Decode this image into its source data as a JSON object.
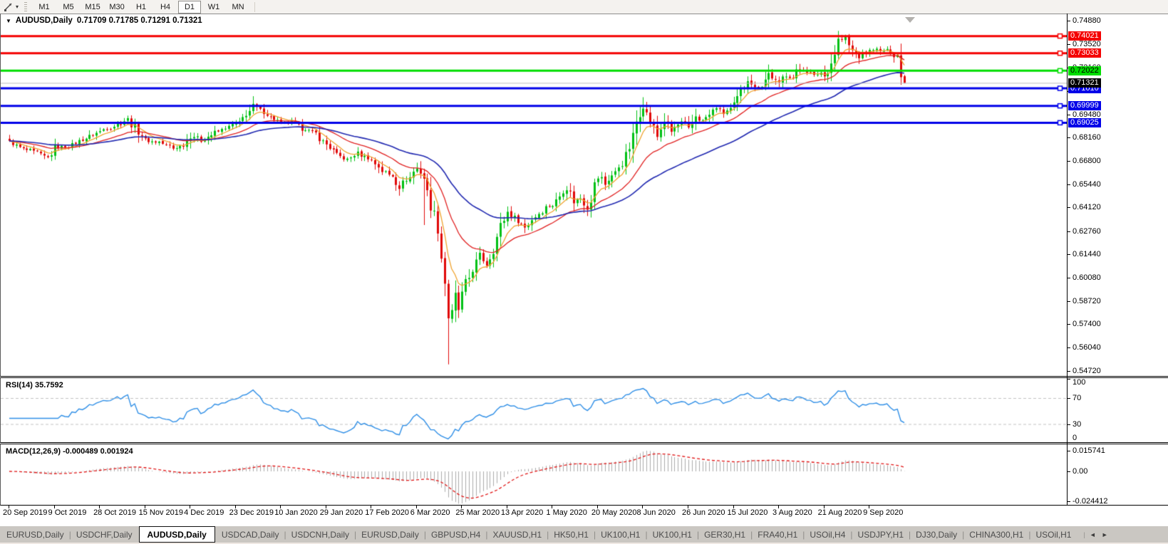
{
  "toolbar": {
    "line_studies_icon": "line-studies",
    "dropdown_caret": "▾",
    "timeframes": [
      "M1",
      "M5",
      "M15",
      "M30",
      "H1",
      "H4",
      "D1",
      "W1",
      "MN"
    ],
    "active_timeframe": "D1"
  },
  "title": {
    "marker": "▼",
    "symbol": "AUDUSD,Daily",
    "ohlc": "0.71709 0.71785 0.71291 0.71321"
  },
  "chart_data": {
    "type": "candlestick",
    "symbol": "AUDUSD",
    "timeframe": "Daily",
    "ohlc_current": {
      "open": 0.71709,
      "high": 0.71785,
      "low": 0.71291,
      "close": 0.71321
    },
    "y_axis_ticks": [
      "0.74880",
      "0.73520",
      "0.72160",
      "0.70840",
      "0.69480",
      "0.68160",
      "0.66800",
      "0.65440",
      "0.64120",
      "0.62760",
      "0.61440",
      "0.60080",
      "0.58720",
      "0.57400",
      "0.56040",
      "0.54720"
    ],
    "x_axis_dates": [
      "20 Sep 2019",
      "9 Oct 2019",
      "28 Oct 2019",
      "15 Nov 2019",
      "4 Dec 2019",
      "23 Dec 2019",
      "10 Jan 2020",
      "29 Jan 2020",
      "17 Feb 2020",
      "6 Mar 2020",
      "25 Mar 2020",
      "13 Apr 2020",
      "1 May 2020",
      "20 May 2020",
      "8 Jun 2020",
      "26 Jun 2020",
      "15 Jul 2020",
      "3 Aug 2020",
      "21 Aug 2020",
      "9 Sep 2020"
    ],
    "price_levels": [
      {
        "label": "0.74021",
        "price": 0.74021,
        "line_color": "#f40000",
        "label_bg": "#f40000",
        "label_fg": "#ffffff"
      },
      {
        "label": "0.73033",
        "price": 0.73033,
        "line_color": "#f40000",
        "label_bg": "#f40000",
        "label_fg": "#ffffff"
      },
      {
        "label": "0.72022",
        "price": 0.72022,
        "line_color": "#00dd00",
        "label_bg": "#00dd00",
        "label_fg": "#000000"
      },
      {
        "label": "0.71010",
        "price": 0.7101,
        "line_color": "#0000e8",
        "label_bg": "#0000e8",
        "label_fg": "#ffffff"
      },
      {
        "label": "0.69999",
        "price": 0.69999,
        "line_color": "#0000e8",
        "label_bg": "#0000e8",
        "label_fg": "#ffffff"
      },
      {
        "label": "0.69025",
        "price": 0.69025,
        "line_color": "#0000e8",
        "label_bg": "#0000e8",
        "label_fg": "#ffffff"
      }
    ],
    "current_price": {
      "label": "0.71321",
      "price": 0.71321,
      "line_color": "#bdbdbd",
      "label_bg": "#000000",
      "label_fg": "#ffffff"
    },
    "candles": {
      "count": 258,
      "bull_color": "#00c014",
      "bear_color": "#e00808",
      "close_waypoints": [
        [
          0,
          0.679
        ],
        [
          4,
          0.6752
        ],
        [
          8,
          0.6729
        ],
        [
          11,
          0.6702
        ],
        [
          13,
          0.6755
        ],
        [
          17,
          0.6768
        ],
        [
          21,
          0.6806
        ],
        [
          26,
          0.6855
        ],
        [
          30,
          0.688
        ],
        [
          34,
          0.6924
        ],
        [
          36,
          0.6876
        ],
        [
          39,
          0.68
        ],
        [
          43,
          0.6792
        ],
        [
          47,
          0.6756
        ],
        [
          50,
          0.6772
        ],
        [
          52,
          0.6836
        ],
        [
          55,
          0.6796
        ],
        [
          59,
          0.6846
        ],
        [
          63,
          0.688
        ],
        [
          66,
          0.6906
        ],
        [
          70,
          0.7
        ],
        [
          73,
          0.696
        ],
        [
          76,
          0.6922
        ],
        [
          78,
          0.6902
        ],
        [
          81,
          0.6906
        ],
        [
          84,
          0.6872
        ],
        [
          88,
          0.684
        ],
        [
          91,
          0.6772
        ],
        [
          94,
          0.6716
        ],
        [
          97,
          0.6692
        ],
        [
          100,
          0.6726
        ],
        [
          104,
          0.6686
        ],
        [
          107,
          0.6626
        ],
        [
          110,
          0.6596
        ],
        [
          112,
          0.6532
        ],
        [
          115,
          0.6592
        ],
        [
          117,
          0.664
        ],
        [
          119,
          0.6586
        ],
        [
          121,
          0.6432
        ],
        [
          123,
          0.6292
        ],
        [
          124,
          0.6132
        ],
        [
          125,
          0.5992
        ],
        [
          126,
          0.5772
        ],
        [
          127,
          0.5802
        ],
        [
          128,
          0.5902
        ],
        [
          129,
          0.5832
        ],
        [
          131,
          0.5962
        ],
        [
          133,
          0.6052
        ],
        [
          135,
          0.6132
        ],
        [
          137,
          0.6082
        ],
        [
          139,
          0.6172
        ],
        [
          141,
          0.6302
        ],
        [
          143,
          0.6392
        ],
        [
          145,
          0.6356
        ],
        [
          148,
          0.6302
        ],
        [
          151,
          0.6362
        ],
        [
          154,
          0.642
        ],
        [
          156,
          0.6422
        ],
        [
          158,
          0.6482
        ],
        [
          160,
          0.6532
        ],
        [
          162,
          0.6446
        ],
        [
          164,
          0.6472
        ],
        [
          166,
          0.6422
        ],
        [
          169,
          0.66
        ],
        [
          171,
          0.6546
        ],
        [
          174,
          0.6622
        ],
        [
          176,
          0.6666
        ],
        [
          178,
          0.6756
        ],
        [
          180,
          0.69
        ],
        [
          182,
          0.7016
        ],
        [
          184,
          0.6906
        ],
        [
          186,
          0.6816
        ],
        [
          188,
          0.6922
        ],
        [
          190,
          0.6856
        ],
        [
          193,
          0.6906
        ],
        [
          195,
          0.6866
        ],
        [
          197,
          0.6936
        ],
        [
          199,
          0.6906
        ],
        [
          201,
          0.6952
        ],
        [
          203,
          0.699
        ],
        [
          205,
          0.6952
        ],
        [
          208,
          0.7002
        ],
        [
          210,
          0.7096
        ],
        [
          212,
          0.715
        ],
        [
          214,
          0.7106
        ],
        [
          216,
          0.7116
        ],
        [
          218,
          0.719
        ],
        [
          220,
          0.7146
        ],
        [
          221,
          0.7122
        ],
        [
          223,
          0.7186
        ],
        [
          225,
          0.7162
        ],
        [
          227,
          0.722
        ],
        [
          229,
          0.7196
        ],
        [
          231,
          0.7166
        ],
        [
          233,
          0.7196
        ],
        [
          234,
          0.7166
        ],
        [
          236,
          0.7246
        ],
        [
          238,
          0.7366
        ],
        [
          240,
          0.7392
        ],
        [
          242,
          0.7316
        ],
        [
          244,
          0.7286
        ],
        [
          246,
          0.7306
        ],
        [
          248,
          0.733
        ],
        [
          250,
          0.7308
        ],
        [
          252,
          0.7322
        ],
        [
          254,
          0.7292
        ],
        [
          255,
          0.729
        ],
        [
          256,
          0.7165
        ],
        [
          257,
          0.71321
        ]
      ],
      "spikes": [
        {
          "i": 70,
          "high": 0.7032
        },
        {
          "i": 119,
          "low": 0.6313
        },
        {
          "i": 126,
          "low": 0.551
        },
        {
          "i": 240,
          "high": 0.7403
        }
      ]
    },
    "moving_averages": [
      {
        "name": "fast",
        "period": 7,
        "color": "#efa32f"
      },
      {
        "name": "medium",
        "period": 21,
        "color": "#e02020"
      },
      {
        "name": "slow",
        "period": 50,
        "color": "#2028b0"
      }
    ],
    "rsi": {
      "label": "RSI(14) 35.7592",
      "value": 35.7592,
      "ticks": [
        "100",
        "70",
        "30",
        "0"
      ],
      "tick_values": [
        100,
        70,
        30,
        0
      ],
      "guide_values": [
        70,
        30
      ],
      "line_color": "#2e8ee6",
      "guide_color": "#c0c0c0"
    },
    "macd": {
      "label": "MACD(12,26,9) -0.000489 0.001924",
      "macd_value": -0.000489,
      "signal_value": 0.001924,
      "ticks": [
        "0.015741",
        "0.00",
        "-0.024412"
      ],
      "tick_values": [
        0.015741,
        0,
        -0.024412
      ],
      "histogram_color": "#ababab",
      "signal_color": "#e01414"
    }
  },
  "tabs": {
    "separator": "|",
    "scroll_left": "◄",
    "scroll_right": "►",
    "active_index": 2,
    "items": [
      "EURUSD,Daily",
      "USDCHF,Daily",
      "AUDUSD,Daily",
      "USDCAD,Daily",
      "USDCNH,Daily",
      "EURUSD,Daily",
      "GBPUSD,H4",
      "XAUUSD,H1",
      "HK50,H1",
      "UK100,H1",
      "UK100,H1",
      "GER30,H1",
      "FRA40,H1",
      "USOil,H4",
      "USDJPY,H1",
      "DJ30,Daily",
      "CHINA300,H1",
      "USOil,H1"
    ]
  }
}
